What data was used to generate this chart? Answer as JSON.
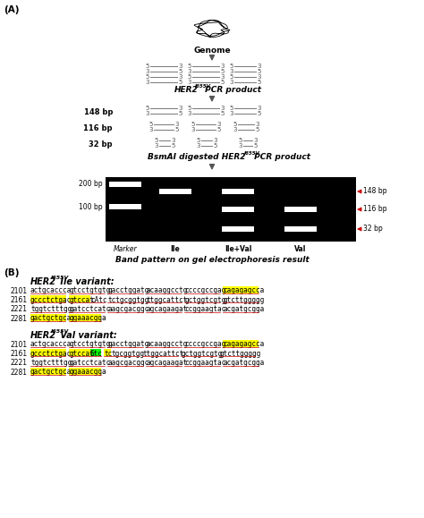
{
  "gel_labels": [
    "Marker",
    "Ile",
    "Ile+Val",
    "Val"
  ],
  "ile_lines": [
    {
      "num": "2101",
      "segs": [
        {
          "t": "actgcaccca",
          "bg": null,
          "ul": true
        },
        {
          "t": " ",
          "bg": null,
          "ul": false
        },
        {
          "t": "gtcctgtgtg",
          "bg": null,
          "ul": true
        },
        {
          "t": " ",
          "bg": null,
          "ul": false
        },
        {
          "t": "gacctggatg",
          "bg": null,
          "ul": true
        },
        {
          "t": " ",
          "bg": null,
          "ul": false
        },
        {
          "t": "acaaggcctg",
          "bg": null,
          "ul": true
        },
        {
          "t": " ",
          "bg": null,
          "ul": false
        },
        {
          "t": "ccccgccgag",
          "bg": null,
          "ul": true
        },
        {
          "t": " ",
          "bg": null,
          "ul": false
        },
        {
          "t": "cagagagcca",
          "bg": "yellow",
          "ul": true
        }
      ]
    },
    {
      "num": "2161",
      "segs": [
        {
          "t": "gccctctgac",
          "bg": "yellow",
          "ul": true
        },
        {
          "t": " ",
          "bg": null,
          "ul": false
        },
        {
          "t": "gtccat",
          "bg": "yellow",
          "ul": true
        },
        {
          "t": "cAtc",
          "bg": null,
          "ul": true
        },
        {
          "t": " ",
          "bg": null,
          "ul": false
        },
        {
          "t": "tctgcggtgg",
          "bg": null,
          "ul": true
        },
        {
          "t": " ",
          "bg": null,
          "ul": false
        },
        {
          "t": "ttggcattct",
          "bg": null,
          "ul": true
        },
        {
          "t": " ",
          "bg": null,
          "ul": false
        },
        {
          "t": "gctggtcgtg",
          "bg": null,
          "ul": true
        },
        {
          "t": " ",
          "bg": null,
          "ul": false
        },
        {
          "t": "gtcttggggg",
          "bg": null,
          "ul": true
        }
      ]
    },
    {
      "num": "2221",
      "segs": [
        {
          "t": "tggtctttgg",
          "bg": null,
          "ul": true
        },
        {
          "t": " ",
          "bg": null,
          "ul": false
        },
        {
          "t": "gatcctcatc",
          "bg": null,
          "ul": true
        },
        {
          "t": " ",
          "bg": null,
          "ul": false
        },
        {
          "t": "aagcgacggc",
          "bg": null,
          "ul": true
        },
        {
          "t": " ",
          "bg": null,
          "ul": false
        },
        {
          "t": "agcagaagat",
          "bg": null,
          "ul": true
        },
        {
          "t": " ",
          "bg": null,
          "ul": false
        },
        {
          "t": "ccggaagtac",
          "bg": null,
          "ul": true
        },
        {
          "t": " ",
          "bg": null,
          "ul": false
        },
        {
          "t": "acgatgcgga",
          "bg": null,
          "ul": true
        }
      ]
    },
    {
      "num": "2281",
      "segs": [
        {
          "t": "gactgctgca",
          "bg": "yellow",
          "ul": true
        },
        {
          "t": " ",
          "bg": null,
          "ul": false
        },
        {
          "t": "ggaaacgga",
          "bg": "yellow",
          "ul": true
        }
      ]
    }
  ],
  "val_lines": [
    {
      "num": "2101",
      "segs": [
        {
          "t": "actgcaccca",
          "bg": null,
          "ul": true
        },
        {
          "t": " ",
          "bg": null,
          "ul": false
        },
        {
          "t": "gtcctgtgtg",
          "bg": null,
          "ul": true
        },
        {
          "t": " ",
          "bg": null,
          "ul": false
        },
        {
          "t": "gacctggatg",
          "bg": null,
          "ul": true
        },
        {
          "t": " ",
          "bg": null,
          "ul": false
        },
        {
          "t": "acaaggcctg",
          "bg": null,
          "ul": true
        },
        {
          "t": " ",
          "bg": null,
          "ul": false
        },
        {
          "t": "ccccgccgag",
          "bg": null,
          "ul": true
        },
        {
          "t": " ",
          "bg": null,
          "ul": false
        },
        {
          "t": "cagagagcca",
          "bg": "yellow",
          "ul": true
        }
      ]
    },
    {
      "num": "2161",
      "segs": [
        {
          "t": "gccctctgac",
          "bg": "yellow",
          "ul": true
        },
        {
          "t": " ",
          "bg": null,
          "ul": false
        },
        {
          "t": "gtccat",
          "bg": "yellow",
          "ul": true
        },
        {
          "t": "Gtc",
          "bg": "lime",
          "ul": true
        },
        {
          "t": " ",
          "bg": null,
          "ul": false
        },
        {
          "t": "tc",
          "bg": "yellow",
          "ul": true
        },
        {
          "t": "tgcggtgg",
          "bg": null,
          "ul": true
        },
        {
          "t": " ",
          "bg": null,
          "ul": false
        },
        {
          "t": "ttggcattct",
          "bg": null,
          "ul": true
        },
        {
          "t": " ",
          "bg": null,
          "ul": false
        },
        {
          "t": "gctggtcgtg",
          "bg": null,
          "ul": true
        },
        {
          "t": " ",
          "bg": null,
          "ul": false
        },
        {
          "t": "gtcttggggg",
          "bg": null,
          "ul": true
        }
      ]
    },
    {
      "num": "2221",
      "segs": [
        {
          "t": "tggtctttgg",
          "bg": null,
          "ul": true
        },
        {
          "t": " ",
          "bg": null,
          "ul": false
        },
        {
          "t": "gatcctcatc",
          "bg": null,
          "ul": true
        },
        {
          "t": " ",
          "bg": null,
          "ul": false
        },
        {
          "t": "aagcgacggc",
          "bg": null,
          "ul": true
        },
        {
          "t": " ",
          "bg": null,
          "ul": false
        },
        {
          "t": "agcagaagat",
          "bg": null,
          "ul": true
        },
        {
          "t": " ",
          "bg": null,
          "ul": false
        },
        {
          "t": "ccggaagtac",
          "bg": null,
          "ul": true
        },
        {
          "t": " ",
          "bg": null,
          "ul": false
        },
        {
          "t": "acgatgcgga",
          "bg": null,
          "ul": true
        }
      ]
    },
    {
      "num": "2281",
      "segs": [
        {
          "t": "gactgctgca",
          "bg": "yellow",
          "ul": true
        },
        {
          "t": " ",
          "bg": null,
          "ul": false
        },
        {
          "t": "ggaaacgga",
          "bg": "yellow",
          "ul": true
        }
      ]
    }
  ]
}
